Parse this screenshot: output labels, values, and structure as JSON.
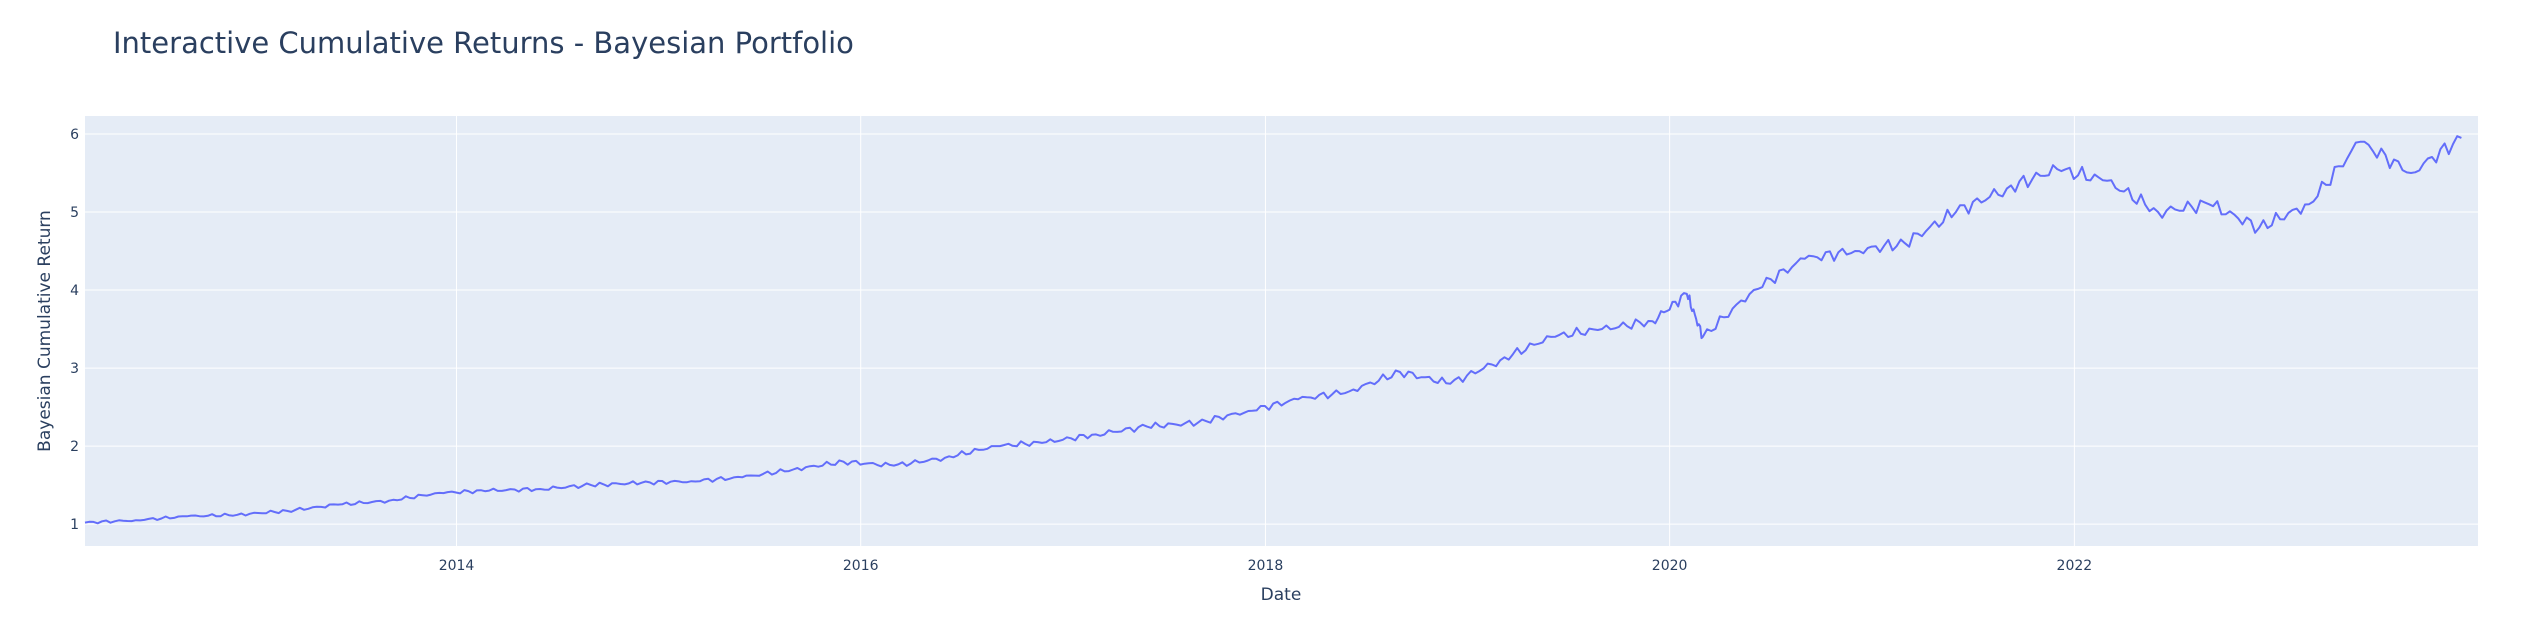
{
  "chart_data": {
    "type": "line",
    "title": "Interactive Cumulative Returns - Bayesian Portfolio",
    "xlabel": "Date",
    "ylabel": "Bayesian Cumulative Return",
    "xlim": [
      "2012-03-01",
      "2023-12-31"
    ],
    "ylim": [
      0.72,
      6.23
    ],
    "grid": true,
    "legend": "none",
    "x_ticks": [
      "2014",
      "2016",
      "2018",
      "2020",
      "2022"
    ],
    "y_ticks": [
      "1",
      "2",
      "3",
      "4",
      "5",
      "6"
    ],
    "colors": {
      "line": "#636efa",
      "plot_bg": "#e5ecf6",
      "grid": "#ffffff",
      "text": "#2a3f5f"
    },
    "series": [
      {
        "x": [
          "2012-03",
          "2012-06",
          "2012-09",
          "2012-12",
          "2013-03",
          "2013-06",
          "2013-09",
          "2013-12",
          "2014-03",
          "2014-06",
          "2014-09",
          "2014-12",
          "2015-03",
          "2015-06",
          "2015-09",
          "2015-12",
          "2016-03",
          "2016-06",
          "2016-09",
          "2016-12",
          "2017-03",
          "2017-06",
          "2017-09",
          "2017-12",
          "2018-03",
          "2018-06",
          "2018-09",
          "2018-12",
          "2019-03",
          "2019-06",
          "2019-09",
          "2019-12",
          "2020-02",
          "2020-03",
          "2020-06",
          "2020-09",
          "2020-12",
          "2021-03",
          "2021-06",
          "2021-09",
          "2021-12",
          "2022-03",
          "2022-06",
          "2022-09",
          "2022-12",
          "2023-03",
          "2023-06",
          "2023-09",
          "2023-12"
        ],
        "y": [
          1.02,
          1.05,
          1.1,
          1.12,
          1.17,
          1.25,
          1.3,
          1.4,
          1.43,
          1.45,
          1.5,
          1.53,
          1.55,
          1.6,
          1.7,
          1.8,
          1.75,
          1.85,
          2.0,
          2.05,
          2.15,
          2.25,
          2.3,
          2.45,
          2.6,
          2.7,
          2.95,
          2.8,
          3.1,
          3.4,
          3.5,
          3.6,
          3.95,
          3.4,
          4.0,
          4.4,
          4.5,
          4.6,
          5.0,
          5.3,
          5.55,
          5.4,
          5.0,
          5.1,
          4.8,
          5.1,
          5.9,
          5.5,
          5.95
        ]
      }
    ]
  }
}
